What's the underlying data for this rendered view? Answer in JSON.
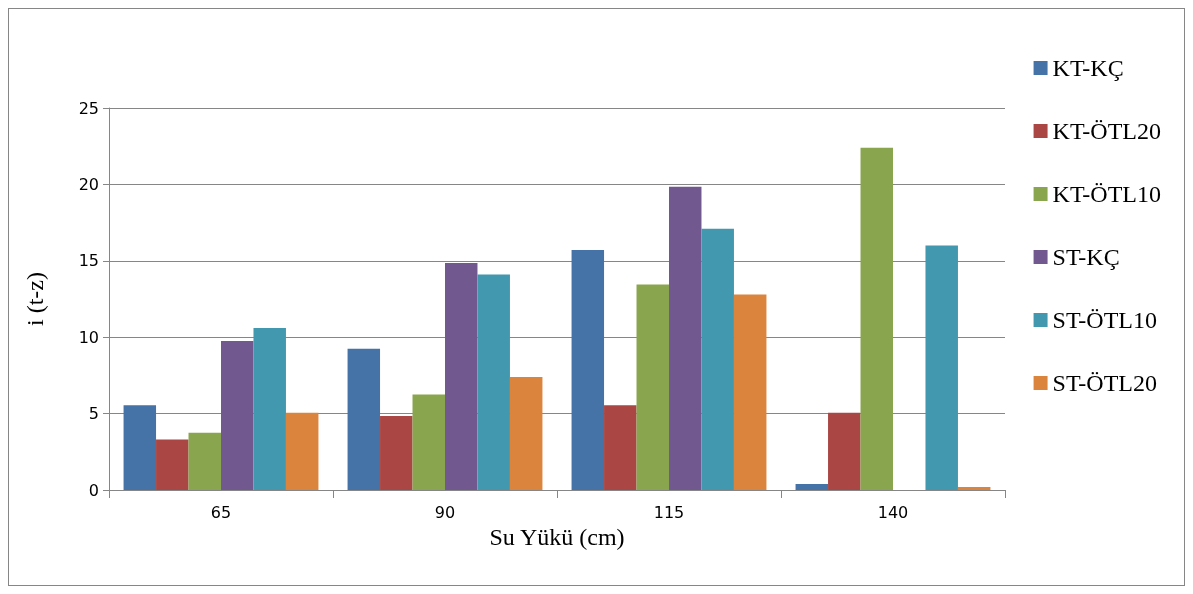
{
  "chart_data": {
    "type": "bar",
    "xlabel": "Su Yükü (cm)",
    "ylabel": "i (t-z)",
    "categories": [
      "65",
      "90",
      "115",
      "140"
    ],
    "series": [
      {
        "name": "KT-KÇ",
        "color": "#4572a7",
        "values": [
          5.55,
          9.25,
          15.7,
          0.4
        ]
      },
      {
        "name": "KT-ÖTL20",
        "color": "#aa4643",
        "values": [
          3.3,
          4.85,
          5.55,
          5.05
        ]
      },
      {
        "name": "KT-ÖTL10",
        "color": "#89a54e",
        "values": [
          3.75,
          6.25,
          13.45,
          22.4
        ]
      },
      {
        "name": "ST-KÇ",
        "color": "#71588f",
        "values": [
          9.75,
          14.85,
          19.85,
          null
        ]
      },
      {
        "name": "ST-ÖTL10",
        "color": "#4198af",
        "values": [
          10.6,
          14.1,
          17.1,
          16.0
        ]
      },
      {
        "name": "ST-ÖTL20",
        "color": "#db843d",
        "values": [
          5.05,
          7.4,
          12.8,
          0.2
        ]
      }
    ],
    "ylim": [
      0,
      25
    ],
    "yticks": [
      0,
      5,
      10,
      15,
      20,
      25
    ],
    "grid": "y",
    "legend": "right"
  }
}
